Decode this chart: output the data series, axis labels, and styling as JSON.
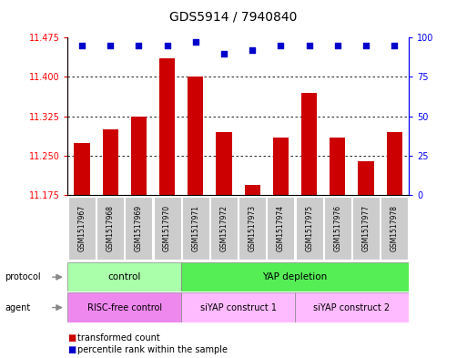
{
  "title": "GDS5914 / 7940840",
  "samples": [
    "GSM1517967",
    "GSM1517968",
    "GSM1517969",
    "GSM1517970",
    "GSM1517971",
    "GSM1517972",
    "GSM1517973",
    "GSM1517974",
    "GSM1517975",
    "GSM1517976",
    "GSM1517977",
    "GSM1517978"
  ],
  "bar_values": [
    11.275,
    11.3,
    11.325,
    11.435,
    11.4,
    11.295,
    11.195,
    11.285,
    11.37,
    11.285,
    11.24,
    11.295
  ],
  "percentile_values": [
    95,
    95,
    95,
    95,
    97,
    90,
    92,
    95,
    95,
    95,
    95,
    95
  ],
  "ymin": 11.175,
  "ymax": 11.475,
  "yticks": [
    11.175,
    11.25,
    11.325,
    11.4,
    11.475
  ],
  "y2ticks": [
    0,
    25,
    50,
    75,
    100
  ],
  "bar_color": "#cc0000",
  "dot_color": "#0000cc",
  "bg_color": "#ffffff",
  "protocol_control_label": "control",
  "protocol_yap_label": "YAP depletion",
  "agent_risc_label": "RISC-free control",
  "agent_siyap1_label": "siYAP construct 1",
  "agent_siyap2_label": "siYAP construct 2",
  "protocol_control_color": "#aaffaa",
  "protocol_yap_color": "#55ee55",
  "agent_risc_color": "#ee88ee",
  "agent_siyap1_color": "#ffbbff",
  "agent_siyap2_color": "#ffbbff",
  "legend_bar_label": "transformed count",
  "legend_dot_label": "percentile rank within the sample",
  "sample_bg_color": "#cccccc",
  "grid_color": "#000000",
  "title_fontsize": 10,
  "tick_fontsize": 7,
  "sample_fontsize": 5.5,
  "label_fontsize": 7.5,
  "legend_fontsize": 7
}
